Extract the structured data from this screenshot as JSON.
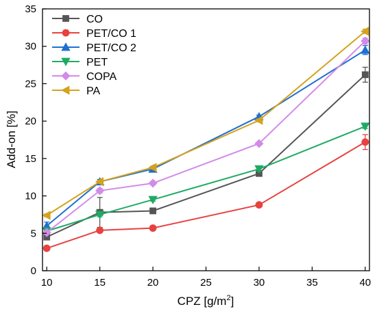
{
  "chart_data": {
    "type": "line",
    "xlabel": "CPZ [g/m",
    "xlabel_superscript": "2",
    "xlabel_suffix": "]",
    "ylabel": "Add-on [%]",
    "xlim": [
      9.6,
      40.4
    ],
    "ylim": [
      0,
      35
    ],
    "x_ticks": [
      10,
      15,
      20,
      25,
      30,
      35,
      40
    ],
    "y_ticks": [
      0,
      5,
      10,
      15,
      20,
      25,
      30,
      35
    ],
    "x": [
      10,
      15,
      20,
      30,
      40
    ],
    "legend_position": "top-left",
    "grid": false,
    "series": [
      {
        "name": "CO",
        "color": "#555555",
        "marker": "square",
        "values": [
          4.5,
          7.8,
          8.0,
          13.0,
          26.2
        ],
        "errors": [
          0.3,
          2.0,
          0.2,
          0.3,
          1.0
        ]
      },
      {
        "name": "PET/CO 1",
        "color": "#e8423f",
        "marker": "circle",
        "values": [
          3.0,
          5.4,
          5.7,
          8.8,
          17.2
        ],
        "errors": [
          0.1,
          0.2,
          0.2,
          0.2,
          1.0
        ]
      },
      {
        "name": "PET/CO 2",
        "color": "#1f6fd1",
        "marker": "triangle-up",
        "values": [
          6.0,
          11.9,
          13.6,
          20.6,
          29.5
        ],
        "errors": [
          0.5,
          0.3,
          0.3,
          0.2,
          0.6
        ]
      },
      {
        "name": "PET",
        "color": "#1faa64",
        "marker": "triangle-down",
        "values": [
          5.3,
          7.5,
          9.5,
          13.6,
          19.3
        ],
        "errors": [
          0.2,
          0.3,
          0.2,
          0.3,
          0.3
        ]
      },
      {
        "name": "COPA",
        "color": "#d28be8",
        "marker": "diamond",
        "values": [
          5.1,
          10.7,
          11.7,
          17.0,
          30.7
        ],
        "errors": [
          0.2,
          0.3,
          0.2,
          0.2,
          0.4
        ]
      },
      {
        "name": "PA",
        "color": "#d4a21c",
        "marker": "triangle-left",
        "values": [
          7.4,
          11.9,
          13.8,
          20.1,
          32.0
        ],
        "errors": [
          0.2,
          0.2,
          0.2,
          0.2,
          0.3
        ]
      }
    ]
  }
}
